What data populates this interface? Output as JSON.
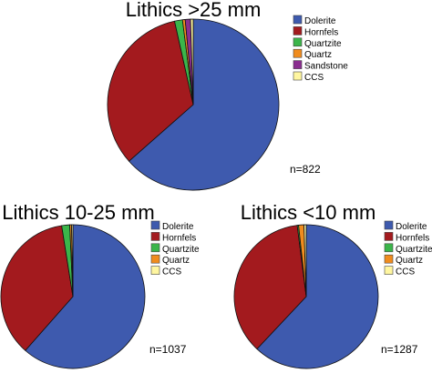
{
  "colors": {
    "Dolerite": "#3e5aae",
    "Hornfels": "#a31a1e",
    "Quartzite": "#3bb54a",
    "Quartz": "#f08c1e",
    "Sandstone": "#8a2e8f",
    "CCS": "#fff6a0"
  },
  "chart_data": [
    {
      "type": "pie",
      "title": "Lithics >25 mm",
      "n_label": "n=822",
      "legend": [
        "Dolerite",
        "Hornfels",
        "Quartzite",
        "Quartz",
        "Sandstone",
        "CCS"
      ],
      "slices": [
        {
          "label": "Dolerite",
          "value": 63.5
        },
        {
          "label": "Hornfels",
          "value": 33.0
        },
        {
          "label": "Quartzite",
          "value": 1.5
        },
        {
          "label": "Quartz",
          "value": 0.5
        },
        {
          "label": "Sandstone",
          "value": 1.0
        },
        {
          "label": "CCS",
          "value": 0.5
        }
      ]
    },
    {
      "type": "pie",
      "title": "Lithics 10-25 mm",
      "n_label": "n=1037",
      "legend": [
        "Dolerite",
        "Hornfels",
        "Quartzite",
        "Quartz",
        "CCS"
      ],
      "slices": [
        {
          "label": "Dolerite",
          "value": 61.5
        },
        {
          "label": "Hornfels",
          "value": 36.0
        },
        {
          "label": "Quartzite",
          "value": 1.8
        },
        {
          "label": "Quartz",
          "value": 0.4
        },
        {
          "label": "CCS",
          "value": 0.3
        }
      ]
    },
    {
      "type": "pie",
      "title": "Lithics <10 mm",
      "n_label": "n=1287",
      "legend": [
        "Dolerite",
        "Hornfels",
        "Quartzite",
        "Quartz",
        "CCS"
      ],
      "slices": [
        {
          "label": "Dolerite",
          "value": 62.0
        },
        {
          "label": "Hornfels",
          "value": 36.0
        },
        {
          "label": "Quartzite",
          "value": 0.3
        },
        {
          "label": "Quartz",
          "value": 1.2
        },
        {
          "label": "CCS",
          "value": 0.5
        }
      ]
    }
  ]
}
